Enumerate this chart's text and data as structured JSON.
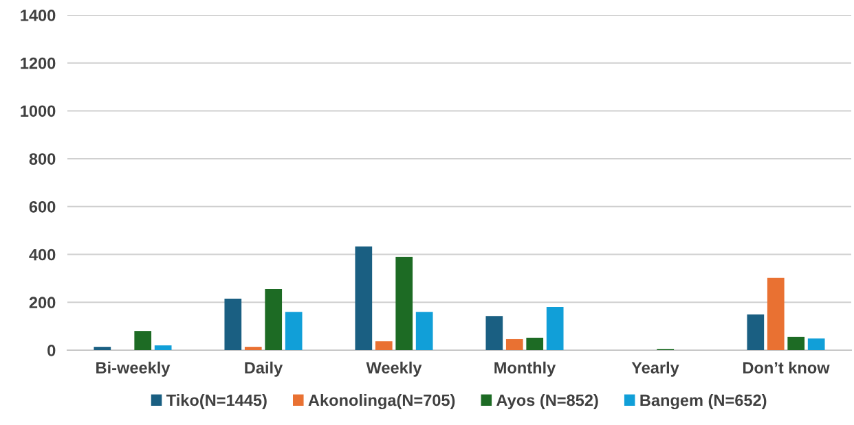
{
  "chart_data": {
    "type": "bar",
    "categories": [
      "Bi-weekly",
      "Daily",
      "Weekly",
      "Monthly",
      "Yearly",
      "Don’t know"
    ],
    "series": [
      {
        "name": "Tiko(N=1445)",
        "color": "#1a5f82",
        "values": [
          14,
          215,
          433,
          143,
          0,
          149
        ]
      },
      {
        "name": "Akonolinga(N=705)",
        "color": "#e97132",
        "values": [
          0,
          14,
          37,
          46,
          0,
          302
        ]
      },
      {
        "name": "Ayos (N=852)",
        "color": "#1d6b24",
        "values": [
          80,
          255,
          390,
          52,
          5,
          55
        ]
      },
      {
        "name": "Bangem (N=652)",
        "color": "#119fd8",
        "values": [
          20,
          160,
          160,
          181,
          0,
          49
        ]
      }
    ],
    "ylim": [
      0,
      1400
    ],
    "yticks": [
      0,
      200,
      400,
      600,
      800,
      1000,
      1200,
      1400
    ],
    "grid": "y",
    "legend": "bottom"
  }
}
